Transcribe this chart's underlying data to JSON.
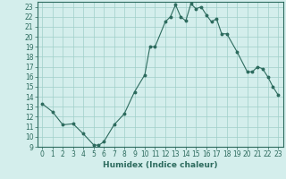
{
  "xlabel": "Humidex (Indice chaleur)",
  "data_points": [
    [
      0,
      13.3
    ],
    [
      1,
      12.5
    ],
    [
      2,
      11.2
    ],
    [
      3,
      11.3
    ],
    [
      4,
      10.3
    ],
    [
      5,
      9.2
    ],
    [
      5.5,
      9.15
    ],
    [
      6,
      9.5
    ],
    [
      7,
      11.2
    ],
    [
      8,
      12.3
    ],
    [
      9,
      14.5
    ],
    [
      10,
      16.2
    ],
    [
      10.5,
      19.0
    ],
    [
      11,
      19.0
    ],
    [
      12,
      21.5
    ],
    [
      12.5,
      22.0
    ],
    [
      13,
      23.2
    ],
    [
      13.5,
      22.0
    ],
    [
      14,
      21.6
    ],
    [
      14.5,
      23.3
    ],
    [
      15,
      22.8
    ],
    [
      15.5,
      23.0
    ],
    [
      16,
      22.2
    ],
    [
      16.5,
      21.5
    ],
    [
      17,
      21.8
    ],
    [
      17.5,
      20.3
    ],
    [
      18,
      20.3
    ],
    [
      19,
      18.5
    ],
    [
      20,
      16.5
    ],
    [
      20.5,
      16.5
    ],
    [
      21,
      17.0
    ],
    [
      21.5,
      16.8
    ],
    [
      22,
      16.0
    ],
    [
      22.5,
      15.0
    ],
    [
      23,
      14.2
    ]
  ],
  "line_color": "#2d6b5e",
  "marker_color": "#2d6b5e",
  "bg_color": "#d4eeec",
  "grid_color": "#a0cfc9",
  "ylim": [
    9,
    23.5
  ],
  "xlim": [
    -0.5,
    23.5
  ],
  "yticks": [
    9,
    10,
    11,
    12,
    13,
    14,
    15,
    16,
    17,
    18,
    19,
    20,
    21,
    22,
    23
  ],
  "xticks": [
    0,
    1,
    2,
    3,
    4,
    5,
    6,
    7,
    8,
    9,
    10,
    11,
    12,
    13,
    14,
    15,
    16,
    17,
    18,
    19,
    20,
    21,
    22,
    23
  ],
  "tick_fontsize": 5.5,
  "xlabel_fontsize": 6.5
}
